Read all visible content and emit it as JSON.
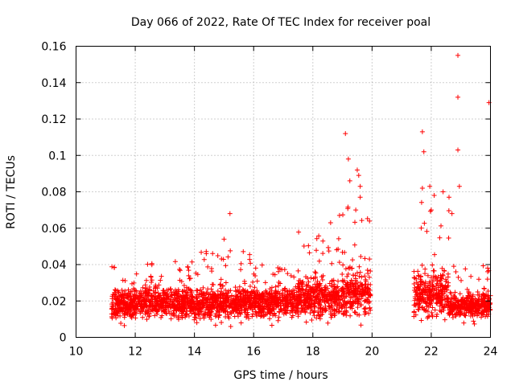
{
  "chart_data": {
    "type": "scatter",
    "title": "Day 066 of 2022, Rate Of TEC Index for receiver poal",
    "xlabel": "GPS time / hours",
    "ylabel": "ROTI / TECUs",
    "xlim": [
      10,
      24
    ],
    "ylim": [
      0,
      0.16
    ],
    "xticks": [
      "10",
      "12",
      "14",
      "16",
      "18",
      "20",
      "22",
      "24"
    ],
    "yticks": [
      "0",
      "0.02",
      "0.04",
      "0.06",
      "0.08",
      "0.1",
      "0.12",
      "0.14",
      "0.16"
    ],
    "grid": true,
    "marker": "+",
    "color": "#ff0000",
    "density_segments": [
      {
        "x_start": 11.2,
        "x_end": 12.0,
        "base": 0.018,
        "spread": 0.01,
        "max": 0.04
      },
      {
        "x_start": 12.0,
        "x_end": 14.0,
        "base": 0.019,
        "spread": 0.01,
        "max": 0.042
      },
      {
        "x_start": 14.0,
        "x_end": 16.0,
        "base": 0.019,
        "spread": 0.011,
        "max": 0.048
      },
      {
        "x_start": 16.0,
        "x_end": 17.5,
        "base": 0.019,
        "spread": 0.01,
        "max": 0.04
      },
      {
        "x_start": 17.5,
        "x_end": 19.0,
        "base": 0.022,
        "spread": 0.013,
        "max": 0.06
      },
      {
        "x_start": 19.0,
        "x_end": 19.95,
        "base": 0.024,
        "spread": 0.016,
        "max": 0.072
      },
      {
        "x_start": 21.4,
        "x_end": 22.6,
        "base": 0.024,
        "spread": 0.015,
        "max": 0.075
      },
      {
        "x_start": 22.6,
        "x_end": 24.0,
        "base": 0.018,
        "spread": 0.009,
        "max": 0.04
      }
    ],
    "outliers": [
      {
        "x": 15.2,
        "y": 0.068
      },
      {
        "x": 15.0,
        "y": 0.054
      },
      {
        "x": 18.6,
        "y": 0.063
      },
      {
        "x": 18.9,
        "y": 0.067
      },
      {
        "x": 19.1,
        "y": 0.112
      },
      {
        "x": 19.2,
        "y": 0.098
      },
      {
        "x": 19.25,
        "y": 0.086
      },
      {
        "x": 19.5,
        "y": 0.092
      },
      {
        "x": 19.55,
        "y": 0.089
      },
      {
        "x": 19.6,
        "y": 0.083
      },
      {
        "x": 19.6,
        "y": 0.077
      },
      {
        "x": 19.45,
        "y": 0.07
      },
      {
        "x": 21.7,
        "y": 0.113
      },
      {
        "x": 21.75,
        "y": 0.102
      },
      {
        "x": 21.7,
        "y": 0.082
      },
      {
        "x": 21.95,
        "y": 0.083
      },
      {
        "x": 22.1,
        "y": 0.078
      },
      {
        "x": 22.0,
        "y": 0.07
      },
      {
        "x": 22.4,
        "y": 0.08
      },
      {
        "x": 22.6,
        "y": 0.077
      },
      {
        "x": 22.9,
        "y": 0.155
      },
      {
        "x": 22.9,
        "y": 0.132
      },
      {
        "x": 22.9,
        "y": 0.103
      },
      {
        "x": 22.95,
        "y": 0.083
      },
      {
        "x": 22.7,
        "y": 0.068
      },
      {
        "x": 23.95,
        "y": 0.129
      },
      {
        "x": 23.9,
        "y": 0.032
      }
    ]
  }
}
